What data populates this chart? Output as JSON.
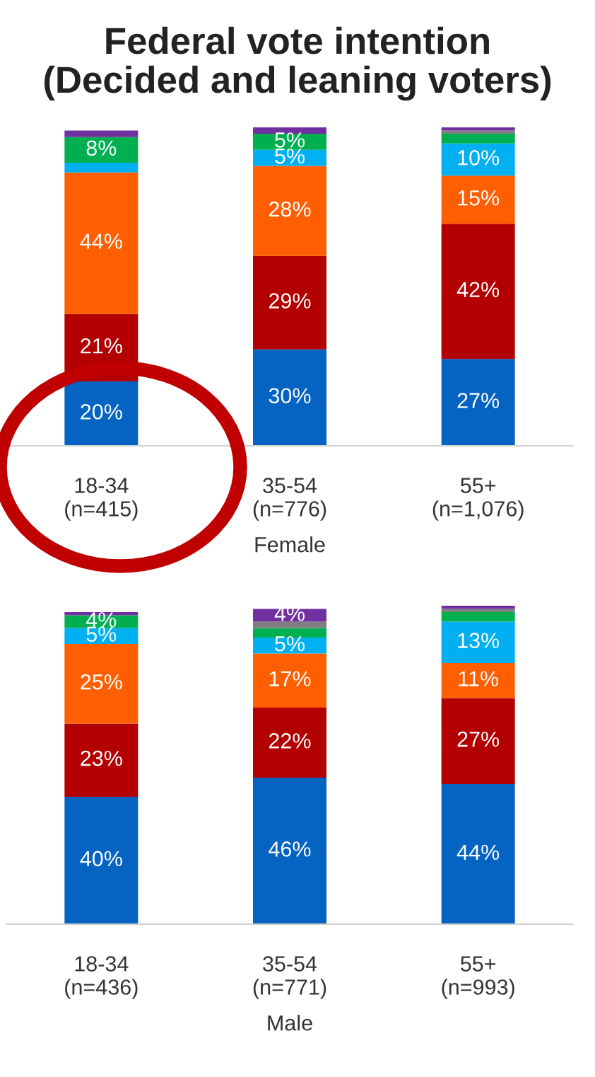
{
  "chart_data": [
    {
      "type": "bar",
      "stacked": true,
      "title": "Federal vote intention\n(Decided and leaning voters)",
      "xlabel": "Female",
      "categories": [
        "18-34\n(n=415)",
        "35-54\n(n=776)",
        "55+\n(n=1,076)"
      ],
      "tick_labels": "x",
      "series": [
        {
          "color": "#0563c1",
          "values": [
            20,
            30,
            27
          ],
          "value_labels": [
            "20%",
            "30%",
            "27%"
          ]
        },
        {
          "color": "#b30000",
          "values": [
            21,
            29,
            42
          ],
          "value_labels": [
            "21%",
            "29%",
            "42%"
          ]
        },
        {
          "color": "#ff5f00",
          "values": [
            44,
            28,
            15
          ],
          "value_labels": [
            "44%",
            "28%",
            "15%"
          ]
        },
        {
          "color": "#00b0f0",
          "values": [
            3,
            5,
            10
          ],
          "value_labels": [
            null,
            "5%",
            "10%"
          ]
        },
        {
          "color": "#00b050",
          "values": [
            8,
            5,
            3
          ],
          "value_labels": [
            "8%",
            "5%",
            null
          ]
        },
        {
          "color": "#7f7f7f",
          "values": [
            null,
            null,
            1
          ],
          "value_labels": [
            null,
            null,
            null
          ]
        },
        {
          "color": "#7030a0",
          "values": [
            2,
            2,
            1
          ],
          "value_labels": [
            null,
            null,
            null
          ]
        }
      ]
    },
    {
      "type": "bar",
      "stacked": true,
      "xlabel": "Male",
      "categories": [
        "18-34\n(n=436)",
        "35-54\n(n=771)",
        "55+\n(n=993)"
      ],
      "tick_labels": "x",
      "series": [
        {
          "color": "#0563c1",
          "values": [
            40,
            46,
            44
          ],
          "value_labels": [
            "40%",
            "46%",
            "44%"
          ]
        },
        {
          "color": "#b30000",
          "values": [
            23,
            22,
            27
          ],
          "value_labels": [
            "23%",
            "22%",
            "27%"
          ]
        },
        {
          "color": "#ff5f00",
          "values": [
            25,
            17,
            11
          ],
          "value_labels": [
            "25%",
            "17%",
            "11%"
          ]
        },
        {
          "color": "#00b0f0",
          "values": [
            5,
            5,
            13
          ],
          "value_labels": [
            "5%",
            "5%",
            "13%"
          ]
        },
        {
          "color": "#00b050",
          "values": [
            4,
            3,
            3
          ],
          "value_labels": [
            "4%",
            null,
            null
          ]
        },
        {
          "color": "#7f7f7f",
          "values": [
            null,
            2,
            1
          ],
          "value_labels": [
            null,
            null,
            null
          ]
        },
        {
          "color": "#7030a0",
          "values": [
            1,
            4,
            1
          ],
          "value_labels": [
            null,
            "4%",
            null
          ]
        }
      ]
    }
  ]
}
